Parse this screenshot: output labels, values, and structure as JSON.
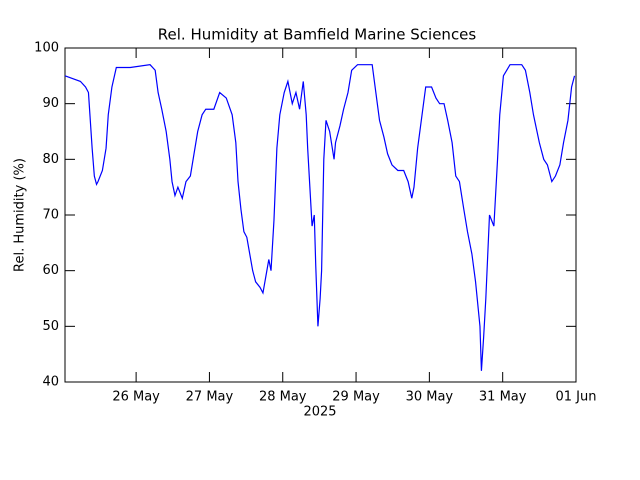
{
  "chart_data": {
    "type": "line",
    "title": "Rel. Humidity at Bamfield Marine Sciences",
    "x_label": "2025",
    "y_label": "Rel. Humidity (%)",
    "x": [
      25.03,
      25.24,
      25.31,
      25.35,
      25.37,
      25.4,
      25.43,
      25.46,
      25.48,
      25.54,
      25.59,
      25.62,
      25.67,
      25.73,
      25.92,
      26.19,
      26.26,
      26.3,
      26.35,
      26.41,
      26.46,
      26.49,
      26.53,
      26.57,
      26.63,
      26.68,
      26.74,
      26.79,
      26.84,
      26.9,
      26.95,
      27.06,
      27.14,
      27.23,
      27.31,
      27.36,
      27.39,
      27.43,
      27.47,
      27.51,
      27.55,
      27.59,
      27.63,
      27.69,
      27.73,
      27.77,
      27.81,
      27.84,
      27.88,
      27.92,
      27.96,
      28.02,
      28.07,
      28.13,
      28.18,
      28.23,
      28.28,
      28.32,
      28.34,
      28.37,
      28.4,
      28.43,
      28.45,
      28.48,
      28.51,
      28.53,
      28.56,
      28.59,
      28.64,
      28.7,
      28.72,
      28.78,
      28.83,
      28.89,
      28.94,
      29.02,
      29.22,
      29.27,
      29.32,
      29.38,
      29.43,
      29.49,
      29.57,
      29.65,
      29.71,
      29.76,
      29.79,
      29.84,
      29.9,
      29.95,
      30.03,
      30.09,
      30.14,
      30.2,
      30.25,
      30.31,
      30.36,
      30.41,
      30.47,
      30.52,
      30.58,
      30.63,
      30.69,
      30.71,
      30.74,
      30.77,
      30.8,
      30.82,
      30.88,
      30.93,
      30.96,
      31.01,
      31.1,
      31.26,
      31.31,
      31.37,
      31.42,
      31.5,
      31.56,
      31.61,
      31.67,
      31.72,
      31.78,
      31.83,
      31.89,
      31.94,
      31.98
    ],
    "series": [
      {
        "name": "Rel. Humidity",
        "color": "#0000ff",
        "values": [
          95,
          94,
          93,
          92,
          88,
          82,
          77,
          75.5,
          76,
          78,
          82,
          88,
          93,
          96.5,
          96.5,
          97,
          96,
          92,
          89,
          85,
          80,
          76,
          73.5,
          75,
          73,
          76,
          77,
          81,
          85,
          88,
          89,
          89,
          92,
          91,
          88,
          83,
          76,
          71,
          67,
          66,
          63,
          60,
          58,
          57,
          56,
          59,
          62,
          60,
          69,
          82,
          88,
          92,
          94,
          90,
          92,
          89,
          94,
          88,
          82,
          75,
          68,
          70,
          61,
          50,
          55,
          60,
          80,
          87,
          85,
          80,
          83,
          86,
          89,
          92,
          96,
          97,
          97,
          92,
          87,
          84,
          81,
          79,
          78,
          78,
          76,
          73,
          75,
          82,
          88,
          93,
          93,
          91,
          90,
          90,
          87,
          83,
          77,
          76,
          71,
          67,
          63,
          58,
          50,
          42,
          48,
          55,
          64,
          70,
          68,
          80,
          88,
          95,
          97,
          97,
          96,
          92,
          88,
          83,
          80,
          79,
          76,
          77,
          79,
          83,
          87,
          93,
          95
        ]
      }
    ],
    "xlim": [
      25.03,
      32.0
    ],
    "xticks": [
      {
        "value": 26,
        "label": "26 May"
      },
      {
        "value": 27,
        "label": "27 May"
      },
      {
        "value": 28,
        "label": "28 May"
      },
      {
        "value": 29,
        "label": "29 May"
      },
      {
        "value": 30,
        "label": "30 May"
      },
      {
        "value": 31,
        "label": "31 May"
      },
      {
        "value": 32,
        "label": "01 Jun"
      }
    ],
    "ylim": [
      40,
      100
    ],
    "yticks": [
      40,
      50,
      60,
      70,
      80,
      90,
      100
    ],
    "grid": false
  }
}
